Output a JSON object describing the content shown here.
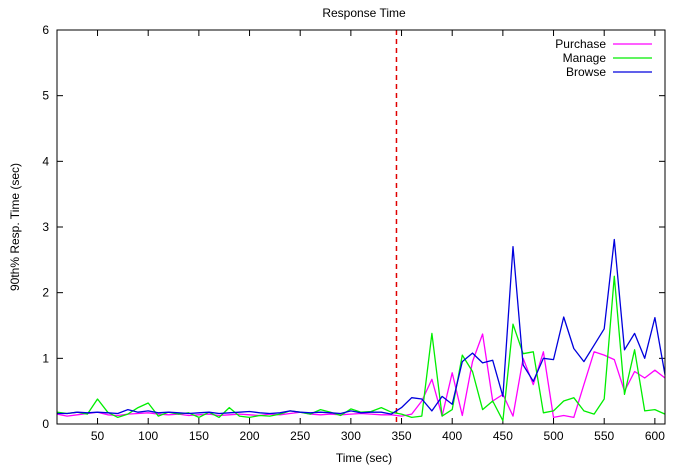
{
  "chart_data": {
    "type": "line",
    "title": "Response Time",
    "xlabel": "Time (sec)",
    "ylabel": "90th% Resp. Time (sec)",
    "xlim": [
      10,
      610
    ],
    "ylim": [
      0,
      6
    ],
    "x_ticks": [
      50,
      100,
      150,
      200,
      250,
      300,
      350,
      400,
      450,
      500,
      550,
      600
    ],
    "y_ticks": [
      0,
      1,
      2,
      3,
      4,
      5,
      6
    ],
    "grid": false,
    "legend_position": "top-right",
    "marker": {
      "x": 345,
      "color": "#e00000",
      "style": "dashed"
    },
    "x": [
      10,
      20,
      30,
      40,
      50,
      60,
      70,
      80,
      90,
      100,
      110,
      120,
      130,
      140,
      150,
      160,
      170,
      180,
      190,
      200,
      210,
      220,
      230,
      240,
      250,
      260,
      270,
      280,
      290,
      300,
      310,
      320,
      330,
      340,
      350,
      360,
      370,
      380,
      390,
      400,
      410,
      420,
      430,
      440,
      450,
      460,
      470,
      480,
      490,
      500,
      510,
      520,
      530,
      540,
      550,
      560,
      570,
      580,
      590,
      600,
      610
    ],
    "series": [
      {
        "name": "Purchase",
        "color": "#ff00ff",
        "values": [
          0.15,
          0.12,
          0.14,
          0.16,
          0.18,
          0.14,
          0.13,
          0.15,
          0.16,
          0.17,
          0.15,
          0.14,
          0.15,
          0.13,
          0.14,
          0.15,
          0.13,
          0.14,
          0.15,
          0.14,
          0.13,
          0.15,
          0.14,
          0.16,
          0.18,
          0.15,
          0.14,
          0.15,
          0.14,
          0.15,
          0.16,
          0.15,
          0.14,
          0.14,
          0.12,
          0.15,
          0.35,
          0.68,
          0.12,
          0.78,
          0.13,
          0.95,
          1.37,
          0.35,
          0.45,
          0.12,
          1.0,
          0.6,
          1.1,
          0.1,
          0.13,
          0.1,
          0.6,
          1.1,
          1.05,
          0.98,
          0.5,
          0.8,
          0.7,
          0.82,
          0.7
        ]
      },
      {
        "name": "Manage",
        "color": "#00ee00",
        "values": [
          0.18,
          0.16,
          0.18,
          0.15,
          0.38,
          0.18,
          0.1,
          0.15,
          0.25,
          0.32,
          0.12,
          0.18,
          0.15,
          0.17,
          0.1,
          0.18,
          0.1,
          0.25,
          0.12,
          0.1,
          0.13,
          0.12,
          0.15,
          0.2,
          0.18,
          0.15,
          0.22,
          0.18,
          0.13,
          0.23,
          0.18,
          0.19,
          0.25,
          0.18,
          0.15,
          0.1,
          0.12,
          1.38,
          0.12,
          0.22,
          1.05,
          0.8,
          0.22,
          0.35,
          0.05,
          1.52,
          1.07,
          1.1,
          0.17,
          0.2,
          0.35,
          0.4,
          0.2,
          0.15,
          0.38,
          2.25,
          0.45,
          1.13,
          0.2,
          0.22,
          0.15
        ]
      },
      {
        "name": "Browse",
        "color": "#0000dd",
        "values": [
          0.16,
          0.16,
          0.18,
          0.17,
          0.18,
          0.17,
          0.16,
          0.22,
          0.18,
          0.2,
          0.17,
          0.18,
          0.17,
          0.16,
          0.17,
          0.18,
          0.16,
          0.17,
          0.18,
          0.19,
          0.17,
          0.16,
          0.17,
          0.2,
          0.18,
          0.17,
          0.18,
          0.17,
          0.16,
          0.2,
          0.17,
          0.18,
          0.18,
          0.15,
          0.25,
          0.4,
          0.38,
          0.2,
          0.42,
          0.3,
          0.95,
          1.08,
          0.93,
          0.97,
          0.42,
          2.7,
          0.9,
          0.65,
          1.0,
          0.98,
          1.63,
          1.15,
          0.95,
          1.2,
          1.45,
          2.81,
          1.13,
          1.38,
          1.0,
          1.62,
          0.75
        ]
      }
    ]
  }
}
